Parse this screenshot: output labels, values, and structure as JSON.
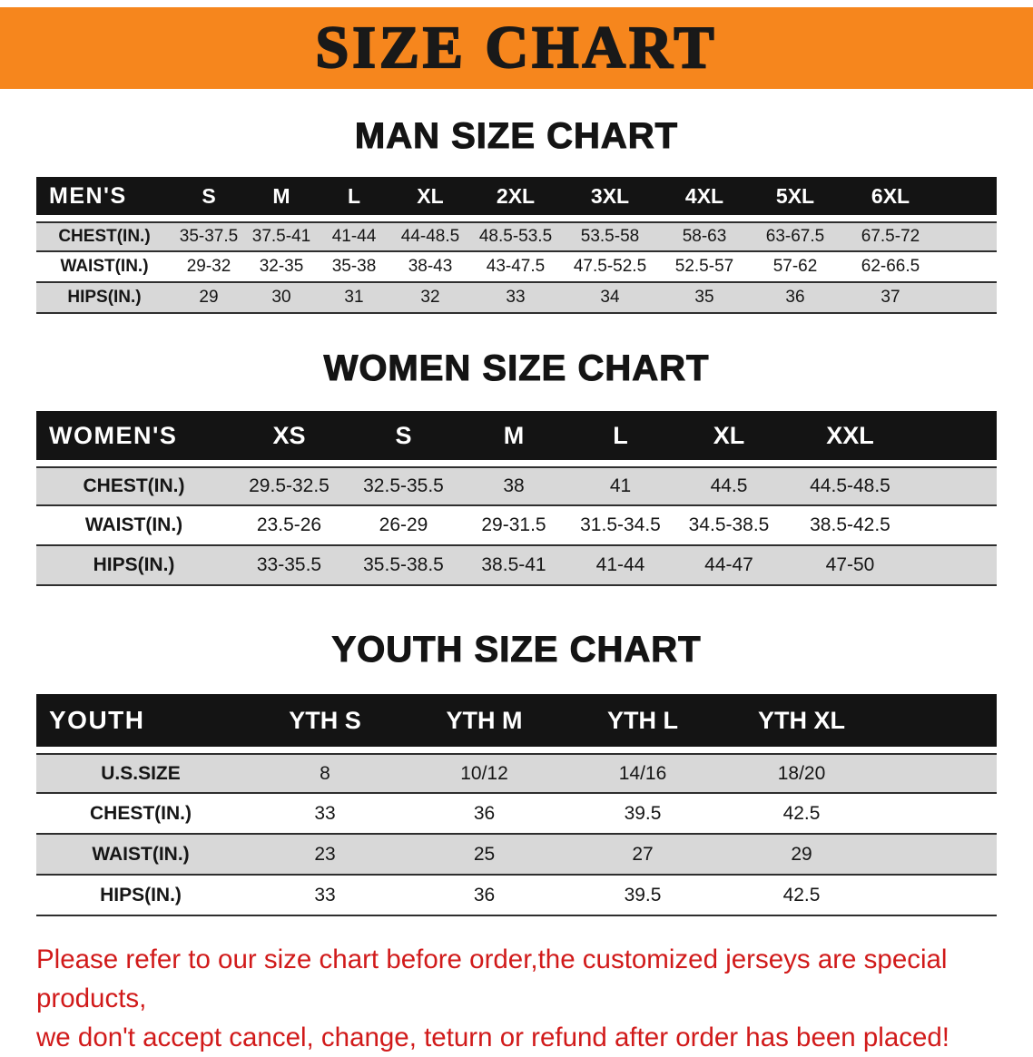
{
  "banner": {
    "title": "SIZE CHART",
    "bg_color": "#f6861d"
  },
  "sections": [
    {
      "heading": "MAN SIZE CHART",
      "corner": "MEN'S",
      "columns": [
        "S",
        "M",
        "L",
        "XL",
        "2XL",
        "3XL",
        "4XL",
        "5XL",
        "6XL"
      ],
      "rows": [
        {
          "label": "CHEST(IN.)",
          "values": [
            "35-37.5",
            "37.5-41",
            "41-44",
            "44-48.5",
            "48.5-53.5",
            "53.5-58",
            "58-63",
            "63-67.5",
            "67.5-72"
          ]
        },
        {
          "label": "WAIST(IN.)",
          "values": [
            "29-32",
            "32-35",
            "35-38",
            "38-43",
            "43-47.5",
            "47.5-52.5",
            "52.5-57",
            "57-62",
            "62-66.5"
          ]
        },
        {
          "label": "HIPS(IN.)",
          "values": [
            "29",
            "30",
            "31",
            "32",
            "33",
            "34",
            "35",
            "36",
            "37"
          ]
        }
      ]
    },
    {
      "heading": "WOMEN SIZE CHART",
      "corner": "WOMEN'S",
      "columns": [
        "XS",
        "S",
        "M",
        "L",
        "XL",
        "XXL"
      ],
      "rows": [
        {
          "label": "CHEST(IN.)",
          "values": [
            "29.5-32.5",
            "32.5-35.5",
            "38",
            "41",
            "44.5",
            "44.5-48.5"
          ]
        },
        {
          "label": "WAIST(IN.)",
          "values": [
            "23.5-26",
            "26-29",
            "29-31.5",
            "31.5-34.5",
            "34.5-38.5",
            "38.5-42.5"
          ]
        },
        {
          "label": "HIPS(IN.)",
          "values": [
            "33-35.5",
            "35.5-38.5",
            "38.5-41",
            "41-44",
            "44-47",
            "47-50"
          ]
        }
      ]
    },
    {
      "heading": "YOUTH SIZE CHART",
      "corner": "YOUTH",
      "columns": [
        "YTH S",
        "YTH M",
        "YTH L",
        "YTH XL"
      ],
      "rows": [
        {
          "label": "U.S.SIZE",
          "values": [
            "8",
            "10/12",
            "14/16",
            "18/20"
          ]
        },
        {
          "label": "CHEST(IN.)",
          "values": [
            "33",
            "36",
            "39.5",
            "42.5"
          ]
        },
        {
          "label": "WAIST(IN.)",
          "values": [
            "23",
            "25",
            "27",
            "29"
          ]
        },
        {
          "label": "HIPS(IN.)",
          "values": [
            "33",
            "36",
            "39.5",
            "42.5"
          ]
        }
      ]
    }
  ],
  "disclaimer": {
    "line1": "Please refer to our size chart before order,the customized jerseys are special products,",
    "line2": "we don't accept cancel, change, teturn or refund after order has been placed!"
  },
  "colors": {
    "banner_orange": "#f6861d",
    "table_header_black": "#141414",
    "stripe_gray": "#d8d8d8",
    "disclaimer_red": "#d11a1a"
  }
}
